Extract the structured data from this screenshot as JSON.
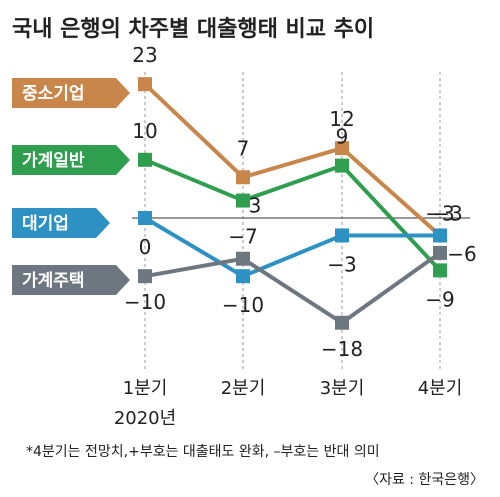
{
  "title": "국내 은행의 차주별 대출행태 비교 추이",
  "footnote": "*4분기는 전망치,+부호는 대출태도 완화, –부호는 반대 의미",
  "source": "〈자료 : 한국은행〉",
  "chart_data": {
    "type": "line",
    "title": "국내 은행의 차주별 대출행태 비교 추이",
    "categories": [
      "1분기",
      "2분기",
      "3분기",
      "4분기"
    ],
    "year_label": "2020년",
    "xlabel": "",
    "ylabel": "",
    "ylim": [
      -20,
      25
    ],
    "grid": false,
    "legend_placement": "left",
    "series": [
      {
        "name": "중소기업",
        "color": "#c8864a",
        "values": [
          23,
          7,
          12,
          -3
        ],
        "labels": [
          "23",
          "7",
          "12",
          "−3"
        ]
      },
      {
        "name": "가계일반",
        "color": "#2f9e4f",
        "values": [
          10,
          3,
          9,
          -9
        ],
        "labels": [
          "10",
          "3",
          "9",
          "−9"
        ]
      },
      {
        "name": "대기업",
        "color": "#2d91c4",
        "values": [
          0,
          -10,
          -3,
          -3
        ],
        "labels": [
          "0",
          "−10",
          "−3",
          "−3"
        ]
      },
      {
        "name": "가계주택",
        "color": "#6e7780",
        "values": [
          -10,
          -7,
          -18,
          -6
        ],
        "labels": [
          "−10",
          "−7",
          "−18",
          "−6"
        ]
      }
    ]
  }
}
